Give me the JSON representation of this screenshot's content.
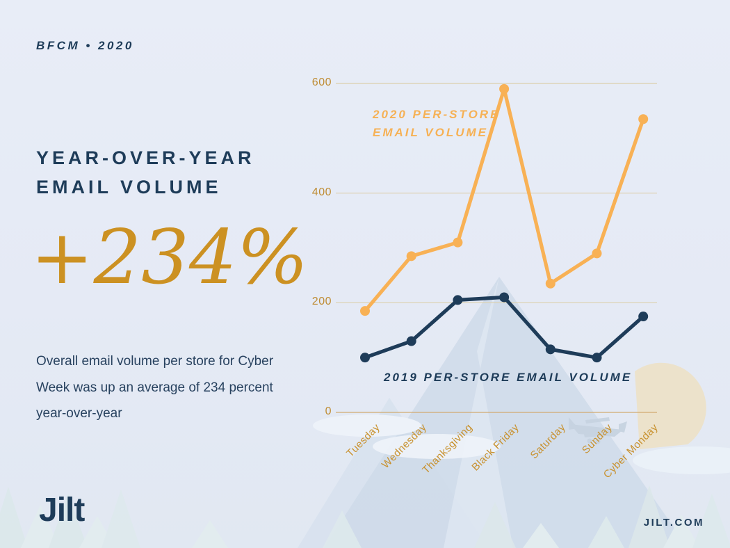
{
  "header": {
    "eyebrow": "BFCM • 2020"
  },
  "left_panel": {
    "title_line1": "YEAR-OVER-YEAR",
    "title_line2": "EMAIL VOLUME",
    "stat": "+234%",
    "description": "Overall email volume per store for Cyber Week was up an average of 234 percent year-over-year"
  },
  "footer": {
    "logo_text": "Jilt",
    "website": "JILT.COM"
  },
  "colors": {
    "background": "#e6ebf6",
    "navy": "#1e3c59",
    "gold_line": "#f8b155",
    "gold_label": "#c8912e",
    "stat_gold": "#cc9122",
    "gridline": "#dccfac",
    "baseline": "#d2aa70"
  },
  "chart_data": {
    "type": "line",
    "categories": [
      "Tuesday",
      "Wednesday",
      "Thanksgiving",
      "Black Friday",
      "Saturday",
      "Sunday",
      "Cyber Monday"
    ],
    "series": [
      {
        "name": "2020 PER-STORE EMAIL VOLUME",
        "color": "#f8b155",
        "values": [
          185,
          285,
          310,
          590,
          235,
          290,
          535
        ]
      },
      {
        "name": "2019 PER-STORE EMAIL VOLUME",
        "color": "#1e3c59",
        "values": [
          100,
          130,
          205,
          210,
          115,
          100,
          175
        ]
      }
    ],
    "yticks": [
      600,
      400,
      200,
      0
    ],
    "ylim": [
      0,
      620
    ],
    "grid": true,
    "legend_position": "inline-annotations"
  }
}
